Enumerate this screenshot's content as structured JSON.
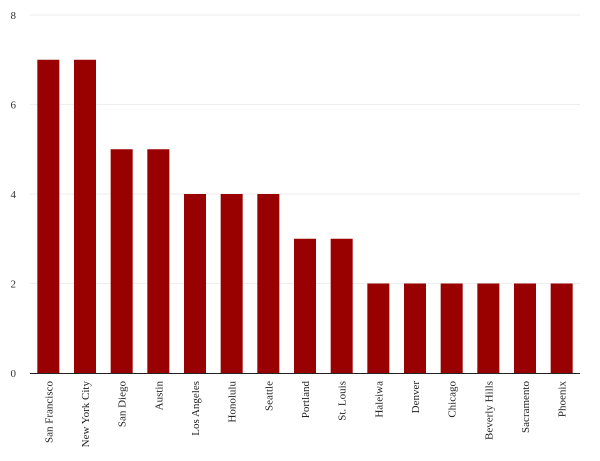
{
  "chart_data": {
    "type": "bar",
    "title": "",
    "xlabel": "",
    "ylabel": "",
    "categories": [
      "San Francisco",
      "New York City",
      "San Diego",
      "Austin",
      "Los Angeles",
      "Honolulu",
      "Seattle",
      "Portland",
      "St. Louis",
      "Haleiwa",
      "Denver",
      "Chicago",
      "Beverly Hills",
      "Sacramento",
      "Phoenix"
    ],
    "values": [
      7,
      7,
      5,
      5,
      4,
      4,
      4,
      3,
      3,
      2,
      2,
      2,
      2,
      2,
      2
    ],
    "ylim": [
      0,
      8
    ],
    "yticks": [
      "0",
      "2",
      "4",
      "6",
      "8"
    ],
    "grid": true,
    "legend": "none",
    "bar_color": "#990000",
    "grid_color": "#eeeeee",
    "axis_color": "#222222"
  }
}
